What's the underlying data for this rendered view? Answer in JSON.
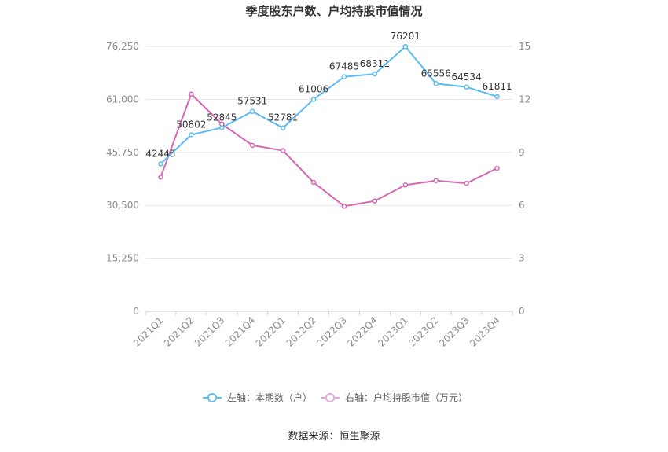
{
  "chart_data": {
    "type": "line",
    "title": "季度股东户数、户均持股市值情况",
    "categories": [
      "2021Q1",
      "2021Q2",
      "2021Q3",
      "2021Q4",
      "2022Q1",
      "2022Q2",
      "2022Q3",
      "2022Q4",
      "2023Q1",
      "2023Q2",
      "2023Q3",
      "2023Q4"
    ],
    "left_axis": {
      "min": 0,
      "max": 76250,
      "ticks": [
        "0",
        "15,250",
        "30,500",
        "45,750",
        "61,000",
        "76,250"
      ],
      "tick_values": [
        0,
        15250,
        30500,
        45750,
        61000,
        76250
      ]
    },
    "right_axis": {
      "min": 0,
      "max": 15,
      "ticks": [
        "0",
        "3",
        "6",
        "9",
        "12",
        "15"
      ],
      "tick_values": [
        0,
        3,
        6,
        9,
        12,
        15
      ]
    },
    "series": [
      {
        "name": "左轴：本期数（户）",
        "axis": "left",
        "color": "#5bbcf0",
        "values": [
          42445,
          50802,
          52845,
          57531,
          52781,
          61006,
          67485,
          68311,
          76201,
          65556,
          64534,
          61811
        ],
        "labels": [
          "42445",
          "50802",
          "52845",
          "57531",
          "52781",
          "61006",
          "67485",
          "68311",
          "76201",
          "65556",
          "64534",
          "61811"
        ]
      },
      {
        "name": "右轴：户均持股市值（万元）",
        "axis": "right",
        "color": "#d567b2",
        "values": [
          7.6,
          12.3,
          10.6,
          9.4,
          9.1,
          7.3,
          5.95,
          6.25,
          7.15,
          7.4,
          7.25,
          8.1
        ]
      }
    ],
    "grid": true,
    "legend_position": "bottom"
  },
  "source_text": "数据来源：恒生聚源"
}
